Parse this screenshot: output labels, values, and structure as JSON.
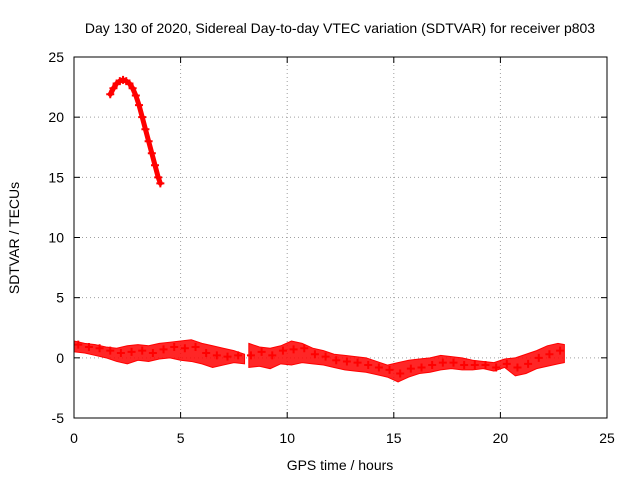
{
  "chart_data": {
    "type": "scatter",
    "title": "Day 130 of 2020, Sidereal Day-to-day VTEC variation (SDTVAR) for receiver p803",
    "xlabel": "GPS time / hours",
    "ylabel": "SDTVAR / TECUs",
    "xlim": [
      0,
      25
    ],
    "ylim": [
      -5,
      25
    ],
    "xticks": [
      0,
      5,
      10,
      15,
      20,
      25
    ],
    "yticks": [
      -5,
      0,
      5,
      10,
      15,
      20,
      25
    ],
    "grid": true,
    "marker": "+",
    "series": [
      {
        "name": "SDTVAR",
        "color": "#ff0000",
        "bands": [
          {
            "x": [
              0.0,
              0.5,
              1.0,
              1.5,
              2.0,
              2.5,
              3.0,
              3.5,
              4.0,
              4.5,
              5.0,
              5.5,
              6.0,
              6.5,
              7.0,
              7.5,
              8.0
            ],
            "upper": [
              1.4,
              1.2,
              1.1,
              0.9,
              0.8,
              1.0,
              1.1,
              1.0,
              1.2,
              1.3,
              1.4,
              1.5,
              1.2,
              1.0,
              0.8,
              0.6,
              0.3
            ],
            "lower": [
              0.5,
              0.4,
              0.2,
              0.0,
              -0.3,
              -0.5,
              -0.2,
              -0.3,
              -0.1,
              0.0,
              -0.2,
              -0.3,
              -0.5,
              -0.8,
              -0.6,
              -0.4,
              -0.5
            ]
          },
          {
            "x": [
              8.2,
              8.7,
              9.2,
              9.7,
              10.2,
              10.7,
              11.2,
              11.7,
              12.2,
              12.7,
              13.2,
              13.7,
              14.2,
              14.7,
              15.2,
              15.7,
              16.2,
              16.7,
              17.2,
              17.7,
              18.2,
              18.7,
              19.2,
              19.7,
              20.2,
              20.7,
              21.2,
              21.7,
              22.2,
              22.7,
              23.0
            ],
            "upper": [
              1.2,
              0.9,
              0.8,
              1.0,
              1.4,
              1.2,
              0.8,
              0.6,
              0.3,
              0.2,
              0.1,
              0.0,
              -0.3,
              -0.6,
              -0.4,
              -0.2,
              -0.1,
              0.0,
              0.2,
              0.1,
              0.0,
              -0.2,
              -0.3,
              -0.4,
              -0.1,
              0.0,
              0.3,
              0.6,
              1.0,
              1.2,
              1.1
            ],
            "lower": [
              -0.8,
              -0.7,
              -0.9,
              -0.5,
              -0.6,
              -0.4,
              -0.5,
              -0.6,
              -0.8,
              -1.0,
              -1.1,
              -1.2,
              -1.4,
              -1.6,
              -2.0,
              -1.6,
              -1.3,
              -1.2,
              -1.0,
              -0.9,
              -1.0,
              -1.0,
              -0.9,
              -1.1,
              -0.8,
              -1.5,
              -1.3,
              -0.9,
              -0.7,
              -0.5,
              -0.4
            ]
          }
        ],
        "x": [
          0.2,
          0.7,
          1.2,
          1.7,
          2.2,
          2.7,
          3.2,
          3.7,
          4.2,
          4.7,
          5.2,
          5.7,
          6.2,
          6.7,
          7.2,
          7.7,
          8.3,
          8.8,
          9.3,
          9.8,
          10.3,
          10.8,
          11.3,
          11.8,
          12.3,
          12.8,
          13.3,
          13.8,
          14.3,
          14.8,
          15.3,
          15.8,
          16.3,
          16.8,
          17.3,
          17.8,
          18.3,
          18.8,
          19.3,
          19.8,
          20.3,
          20.8,
          21.3,
          21.8,
          22.3,
          22.8
        ],
        "y": [
          1.1,
          0.9,
          0.8,
          0.6,
          0.4,
          0.5,
          0.6,
          0.4,
          0.7,
          0.9,
          0.8,
          0.9,
          0.4,
          0.2,
          0.1,
          0.2,
          0.2,
          0.5,
          0.2,
          0.6,
          0.7,
          0.8,
          0.3,
          0.1,
          -0.2,
          -0.3,
          -0.4,
          -0.6,
          -0.8,
          -1.0,
          -1.3,
          -0.9,
          -0.8,
          -0.6,
          -0.4,
          -0.4,
          -0.6,
          -0.6,
          -0.6,
          -0.8,
          -0.5,
          -0.8,
          -0.5,
          0.0,
          0.3,
          0.6
        ],
        "arc": {
          "x": [
            1.7,
            1.85,
            2.0,
            2.15,
            2.3,
            2.45,
            2.6,
            2.75,
            2.9,
            3.05,
            3.2,
            3.35,
            3.5,
            3.65,
            3.8,
            3.95,
            4.05
          ],
          "y": [
            21.9,
            22.4,
            22.8,
            23.0,
            23.1,
            23.0,
            22.8,
            22.4,
            21.8,
            21.0,
            20.0,
            19.0,
            18.0,
            17.0,
            16.0,
            15.0,
            14.5
          ]
        }
      }
    ]
  }
}
